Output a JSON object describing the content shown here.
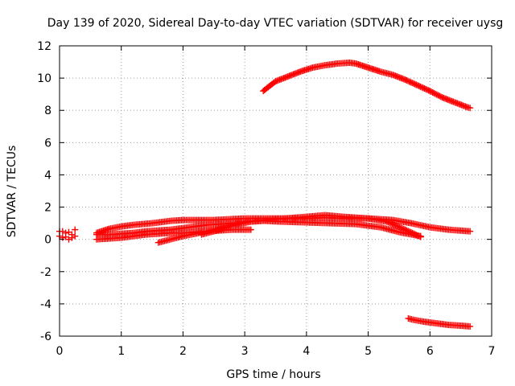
{
  "chart_data": {
    "type": "scatter",
    "title": "Day 139 of 2020, Sidereal Day-to-day VTEC variation (SDTVAR) for receiver uysg",
    "xlabel": "GPS time / hours",
    "ylabel": "SDTVAR / TECUs",
    "xlim": [
      0,
      7
    ],
    "ylim": [
      -6,
      12
    ],
    "xticks": [
      "0",
      "1",
      "2",
      "3",
      "4",
      "5",
      "6",
      "7"
    ],
    "yticks": [
      "-6",
      "-4",
      "-2",
      "0",
      "2",
      "4",
      "6",
      "8",
      "10",
      "12"
    ],
    "grid": true,
    "legend": "none",
    "color": "#ff0000",
    "series": [
      {
        "name": "arc-upper",
        "kind": "line",
        "points": [
          [
            3.3,
            9.2
          ],
          [
            3.5,
            9.8
          ],
          [
            3.7,
            10.1
          ],
          [
            3.9,
            10.4
          ],
          [
            4.1,
            10.65
          ],
          [
            4.3,
            10.8
          ],
          [
            4.5,
            10.9
          ],
          [
            4.7,
            10.95
          ],
          [
            4.8,
            10.9
          ],
          [
            5.0,
            10.65
          ],
          [
            5.2,
            10.4
          ],
          [
            5.4,
            10.2
          ],
          [
            5.6,
            9.9
          ],
          [
            5.8,
            9.55
          ],
          [
            6.0,
            9.2
          ],
          [
            6.2,
            8.8
          ],
          [
            6.4,
            8.5
          ],
          [
            6.6,
            8.2
          ],
          [
            6.65,
            8.15
          ]
        ]
      },
      {
        "name": "arc-lower",
        "kind": "line",
        "points": [
          [
            5.65,
            -4.9
          ],
          [
            5.75,
            -5.0
          ],
          [
            5.9,
            -5.1
          ],
          [
            6.1,
            -5.2
          ],
          [
            6.3,
            -5.3
          ],
          [
            6.5,
            -5.35
          ],
          [
            6.65,
            -5.4
          ]
        ]
      },
      {
        "name": "arc-start",
        "kind": "cluster",
        "points": [
          [
            0.0,
            0.5
          ],
          [
            0.05,
            0.1
          ],
          [
            0.1,
            0.4
          ],
          [
            0.15,
            0.0
          ],
          [
            0.2,
            0.3
          ],
          [
            0.25,
            0.6
          ],
          [
            0.0,
            0.2
          ],
          [
            0.1,
            0.15
          ],
          [
            0.2,
            0.1
          ],
          [
            0.05,
            0.5
          ],
          [
            0.25,
            0.2
          ],
          [
            0.15,
            0.45
          ]
        ]
      },
      {
        "name": "arc-a",
        "kind": "line",
        "points": [
          [
            0.6,
            0.4
          ],
          [
            0.8,
            0.65
          ],
          [
            1.0,
            0.8
          ],
          [
            1.2,
            0.9
          ],
          [
            1.5,
            1.0
          ],
          [
            1.8,
            1.15
          ],
          [
            2.0,
            1.2
          ],
          [
            2.5,
            1.2
          ],
          [
            3.0,
            1.3
          ],
          [
            3.5,
            1.3
          ],
          [
            4.0,
            1.3
          ],
          [
            4.3,
            1.35
          ],
          [
            4.6,
            1.3
          ],
          [
            5.0,
            1.3
          ],
          [
            5.4,
            1.2
          ],
          [
            5.7,
            1.0
          ],
          [
            6.0,
            0.75
          ],
          [
            6.3,
            0.6
          ],
          [
            6.65,
            0.5
          ]
        ]
      },
      {
        "name": "arc-b",
        "kind": "line",
        "points": [
          [
            1.6,
            -0.2
          ],
          [
            1.8,
            0.0
          ],
          [
            2.0,
            0.2
          ],
          [
            2.2,
            0.35
          ],
          [
            2.5,
            0.6
          ],
          [
            2.8,
            0.9
          ],
          [
            3.0,
            1.1
          ],
          [
            3.5,
            1.25
          ],
          [
            4.0,
            1.4
          ],
          [
            4.3,
            1.5
          ],
          [
            4.6,
            1.4
          ],
          [
            5.0,
            1.3
          ],
          [
            5.3,
            1.1
          ],
          [
            5.6,
            0.6
          ],
          [
            5.85,
            0.15
          ]
        ]
      },
      {
        "name": "arc-c",
        "kind": "line",
        "points": [
          [
            2.3,
            0.3
          ],
          [
            2.5,
            0.5
          ],
          [
            2.7,
            0.75
          ],
          [
            2.9,
            0.95
          ],
          [
            3.1,
            1.1
          ],
          [
            3.3,
            1.15
          ],
          [
            3.6,
            1.1
          ],
          [
            4.0,
            1.05
          ],
          [
            4.4,
            1.0
          ],
          [
            4.8,
            0.95
          ],
          [
            5.2,
            0.75
          ],
          [
            5.5,
            0.45
          ],
          [
            5.85,
            0.2
          ]
        ]
      },
      {
        "name": "arc-d",
        "kind": "line",
        "points": [
          [
            0.6,
            0.0
          ],
          [
            0.8,
            0.05
          ],
          [
            1.0,
            0.1
          ],
          [
            1.2,
            0.2
          ],
          [
            1.4,
            0.3
          ],
          [
            1.6,
            0.35
          ],
          [
            1.8,
            0.4
          ],
          [
            2.0,
            0.4
          ],
          [
            2.2,
            0.45
          ],
          [
            2.4,
            0.5
          ],
          [
            2.6,
            0.55
          ],
          [
            2.8,
            0.6
          ],
          [
            3.0,
            0.6
          ],
          [
            3.1,
            0.6
          ]
        ]
      },
      {
        "name": "arc-e",
        "kind": "line",
        "points": [
          [
            0.6,
            0.3
          ],
          [
            0.8,
            0.3
          ],
          [
            1.0,
            0.35
          ],
          [
            1.2,
            0.4
          ],
          [
            1.4,
            0.5
          ],
          [
            1.6,
            0.55
          ],
          [
            1.8,
            0.6
          ],
          [
            2.0,
            0.7
          ],
          [
            2.2,
            0.8
          ],
          [
            2.4,
            0.9
          ],
          [
            2.6,
            0.95
          ],
          [
            2.8,
            1.0
          ],
          [
            3.0,
            1.05
          ]
        ]
      }
    ]
  }
}
